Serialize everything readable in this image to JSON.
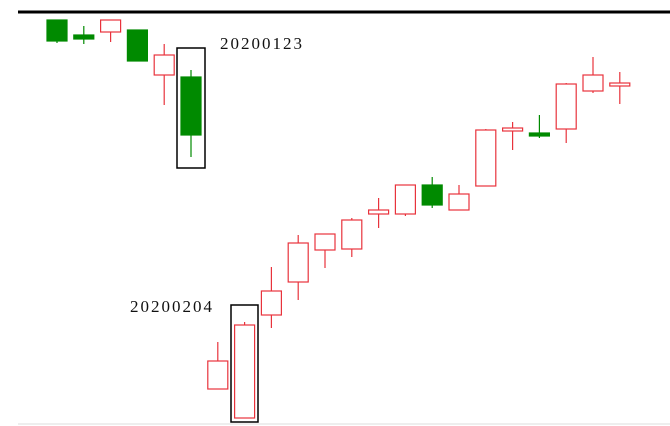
{
  "chart_data": {
    "type": "candlestick",
    "annotations": [
      "20200123",
      "20200204"
    ],
    "categories": [
      null,
      null,
      null,
      null,
      null,
      null,
      null,
      null,
      null,
      null,
      null,
      null,
      null,
      null,
      null,
      null,
      null,
      null,
      null,
      null,
      null,
      null
    ],
    "open": [
      406,
      391,
      394,
      396,
      351,
      349,
      37,
      8,
      111,
      144,
      176,
      177,
      212,
      212,
      241,
      216,
      240,
      295,
      293,
      297,
      335,
      340
    ],
    "high": [
      406,
      400,
      406,
      396,
      382,
      356,
      84,
      104,
      159,
      191,
      192,
      208,
      228,
      241,
      249,
      241,
      297,
      304,
      311,
      343,
      369,
      354
    ],
    "low": [
      383,
      382,
      384,
      365,
      321,
      269,
      37,
      8,
      98,
      126,
      158,
      169,
      198,
      210,
      218,
      216,
      240,
      276,
      288,
      283,
      333,
      322
    ],
    "close": [
      385,
      387,
      406,
      365,
      371,
      291,
      65,
      101,
      135,
      183,
      192,
      206,
      216,
      241,
      221,
      232,
      296,
      298,
      290,
      342,
      351,
      343
    ],
    "up_color": "#e8333c",
    "down_color": "#008a00",
    "ylim": [
      0,
      426
    ]
  }
}
